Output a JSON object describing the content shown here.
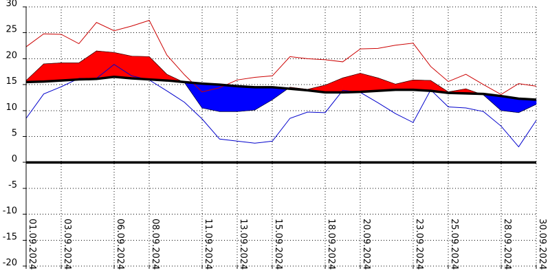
{
  "chart_data": {
    "type": "area",
    "title": "",
    "xlabel": "",
    "ylabel": "",
    "ylim": [
      -20,
      30
    ],
    "yticks": [
      30,
      25,
      20,
      15,
      10,
      5,
      0,
      -5,
      -10,
      -15,
      -20
    ],
    "xtick_labels": [
      "01.09.2024",
      "03.09.2024",
      "06.09.2024",
      "08.09.2024",
      "11.09.2024",
      "13.09.2024",
      "15.09.2024",
      "18.09.2024",
      "20.09.2024",
      "23.09.2024",
      "25.09.2024",
      "28.09.2024",
      "30.09.2024"
    ],
    "xtick_days": [
      1,
      3,
      6,
      8,
      11,
      13,
      15,
      18,
      20,
      23,
      25,
      28,
      30
    ],
    "grid": true,
    "colors": {
      "above_fill": "#ff0000",
      "below_fill": "#0000ff",
      "max_line": "#cc0000",
      "min_line": "#0000cc",
      "normal_line": "#000000",
      "zero_line": "#000000"
    },
    "series": [
      {
        "role": "max",
        "x": [
          1,
          2,
          3,
          4,
          5,
          6,
          7,
          8,
          9,
          10,
          11,
          12,
          13,
          14,
          15,
          16,
          17,
          18,
          19,
          20,
          21,
          22,
          23,
          24,
          25,
          26,
          27,
          28,
          29,
          30
        ],
        "values": [
          22.3,
          24.8,
          24.7,
          22.9,
          27.0,
          25.4,
          26.3,
          27.4,
          20.7,
          16.9,
          13.6,
          14.4,
          15.9,
          16.4,
          16.7,
          20.4,
          20.0,
          19.8,
          19.4,
          21.9,
          22.0,
          22.6,
          23.0,
          18.5,
          15.6,
          17.0,
          15.0,
          13.1,
          15.2,
          14.7
        ]
      },
      {
        "role": "mean",
        "x": [
          1,
          2,
          3,
          4,
          5,
          6,
          7,
          8,
          9,
          10,
          11,
          12,
          13,
          14,
          15,
          16,
          17,
          18,
          19,
          20,
          21,
          22,
          23,
          24,
          25,
          26,
          27,
          28,
          29,
          30
        ],
        "values": [
          15.8,
          19.0,
          19.2,
          19.2,
          21.5,
          21.2,
          20.5,
          20.4,
          17.0,
          15.4,
          10.5,
          9.8,
          9.8,
          10.1,
          12.1,
          14.5,
          14.1,
          14.9,
          16.3,
          17.2,
          16.3,
          15.1,
          15.9,
          15.8,
          13.6,
          14.2,
          13.0,
          10.0,
          9.6,
          11.2
        ]
      },
      {
        "role": "min",
        "x": [
          1,
          2,
          3,
          4,
          5,
          6,
          7,
          8,
          9,
          10,
          11,
          12,
          13,
          14,
          15,
          16,
          17,
          18,
          19,
          20,
          21,
          22,
          23,
          24,
          25,
          26,
          27,
          28,
          29,
          30
        ],
        "values": [
          8.5,
          13.2,
          14.6,
          16.2,
          16.2,
          18.9,
          16.7,
          15.9,
          13.8,
          11.6,
          8.4,
          4.5,
          4.1,
          3.7,
          4.1,
          8.5,
          9.7,
          9.6,
          13.9,
          13.5,
          11.5,
          9.4,
          7.7,
          14.0,
          10.7,
          10.5,
          9.8,
          7.0,
          3.0,
          8.1
        ]
      },
      {
        "role": "normal",
        "x": [
          1,
          2,
          3,
          4,
          5,
          6,
          7,
          8,
          9,
          10,
          11,
          12,
          13,
          14,
          15,
          16,
          17,
          18,
          19,
          20,
          21,
          22,
          23,
          24,
          25,
          26,
          27,
          28,
          29,
          30
        ],
        "values": [
          15.5,
          15.6,
          15.8,
          16.0,
          16.1,
          16.5,
          16.2,
          16.0,
          15.8,
          15.5,
          15.2,
          15.0,
          14.7,
          14.5,
          14.5,
          14.2,
          13.9,
          13.5,
          13.5,
          13.6,
          13.8,
          14.0,
          14.0,
          13.8,
          13.4,
          13.3,
          13.2,
          12.8,
          12.3,
          12.1
        ]
      }
    ]
  }
}
